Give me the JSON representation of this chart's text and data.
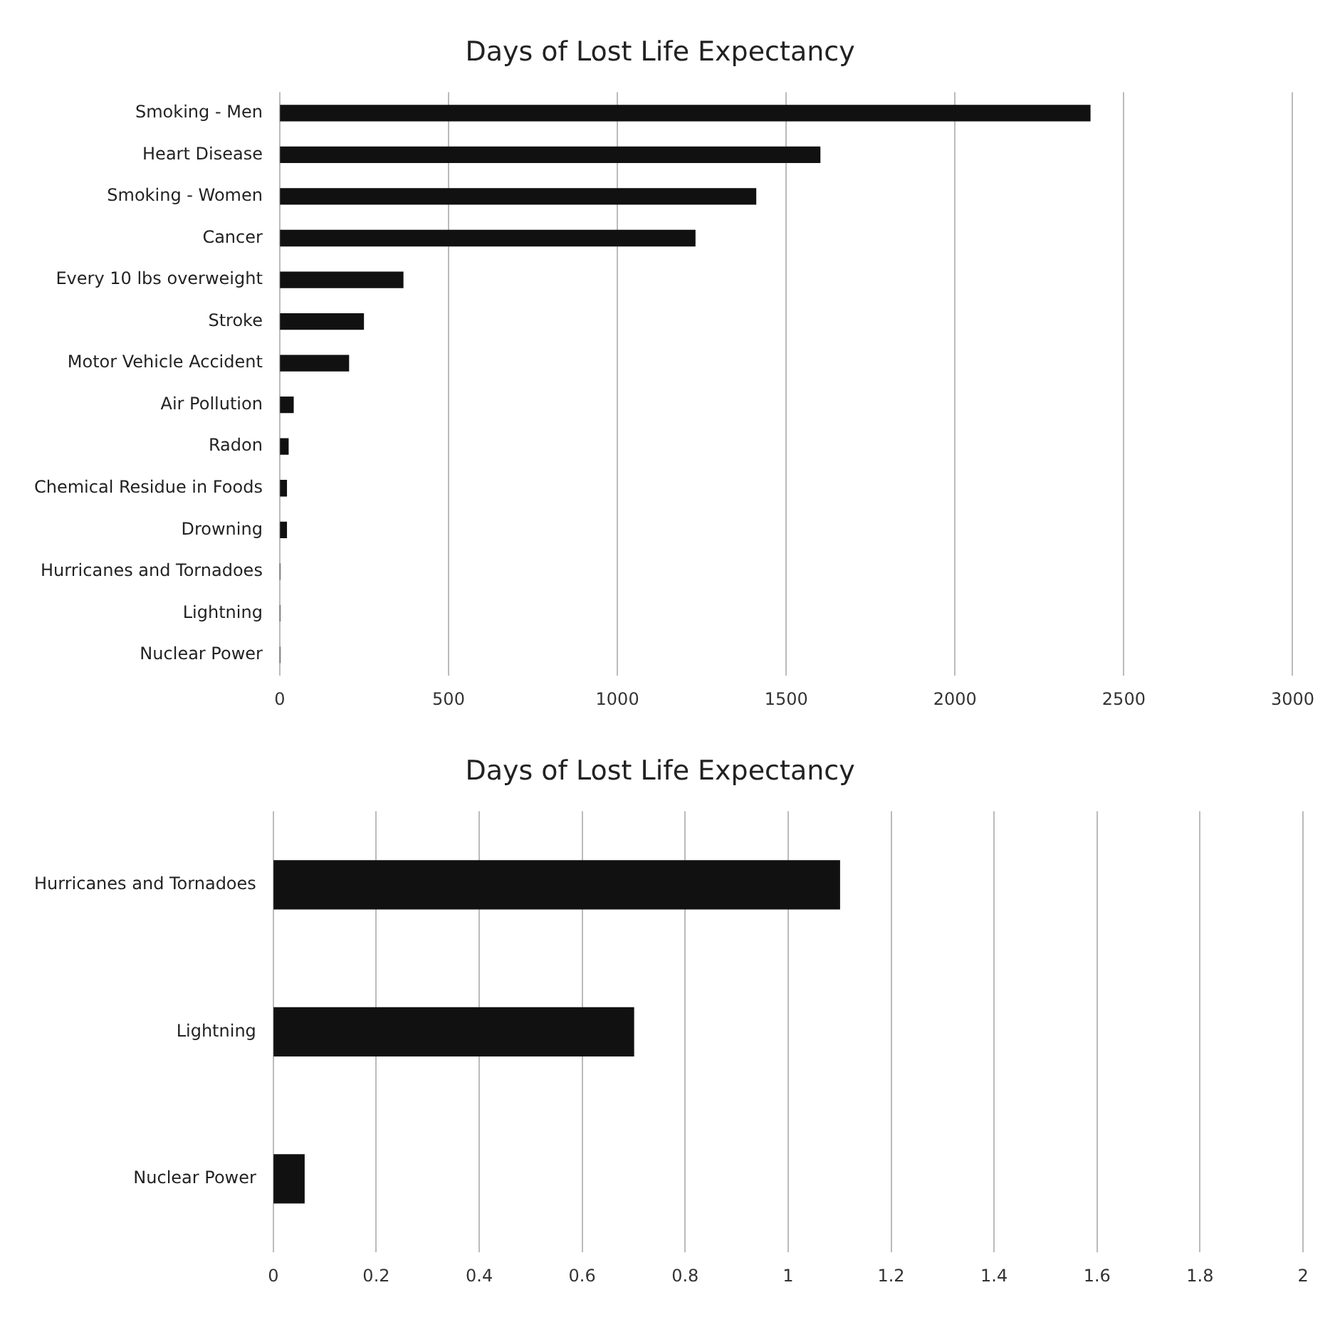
{
  "chart_data": [
    {
      "type": "bar",
      "orientation": "horizontal",
      "title": "Days of Lost Life Expectancy",
      "categories": [
        "Smoking - Men",
        "Heart Disease",
        "Smoking - Women",
        "Cancer",
        "Every 10 lbs overweight",
        "Stroke",
        "Motor Vehicle Accident",
        "Air Pollution",
        "Radon",
        "Chemical Residue in Foods",
        "Drowning",
        "Hurricanes and Tornadoes",
        "Lightning",
        "Nuclear Power"
      ],
      "values": [
        2400,
        1600,
        1410,
        1230,
        365,
        248,
        204,
        40,
        25,
        20,
        20,
        0,
        0,
        0
      ],
      "color": "#111111",
      "xlim": [
        0,
        3000
      ],
      "xticks": [
        0,
        500,
        1000,
        1500,
        2000,
        2500,
        3000
      ],
      "grid": "x"
    },
    {
      "type": "bar",
      "orientation": "horizontal",
      "title": "Days of Lost Life Expectancy",
      "categories": [
        "Hurricanes and Tornadoes",
        "Lightning",
        "Nuclear Power"
      ],
      "values": [
        1.1,
        0.7,
        0.06
      ],
      "color": "#111111",
      "xlim": [
        0,
        2
      ],
      "xticks": [
        0,
        0.2,
        0.4,
        0.6,
        0.8,
        1,
        1.2,
        1.4,
        1.6,
        1.8,
        2
      ],
      "grid": "x"
    }
  ]
}
